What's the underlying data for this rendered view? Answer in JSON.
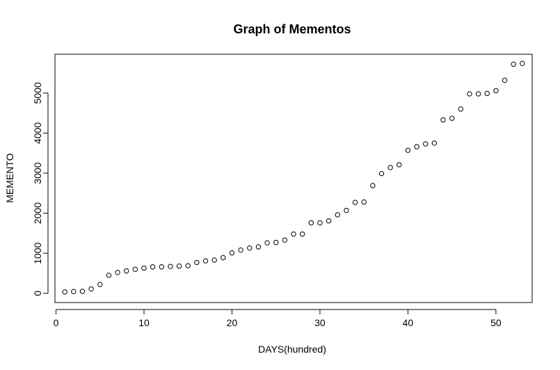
{
  "chart_data": {
    "type": "scatter",
    "title": "Graph of Mementos",
    "xlabel": "DAYS(hundred)",
    "ylabel": "MEMENTO",
    "xlim": [
      -0.12,
      54.12
    ],
    "ylim": [
      -230,
      5969
    ],
    "xticks": [
      0,
      10,
      20,
      30,
      40,
      50
    ],
    "yticks": [
      0,
      1000,
      2000,
      3000,
      4000,
      5000
    ],
    "grid": false,
    "marker": "open-circle",
    "points": [
      {
        "x": 1,
        "y": 35
      },
      {
        "x": 2,
        "y": 45
      },
      {
        "x": 3,
        "y": 50
      },
      {
        "x": 4,
        "y": 110
      },
      {
        "x": 5,
        "y": 220
      },
      {
        "x": 6,
        "y": 450
      },
      {
        "x": 7,
        "y": 520
      },
      {
        "x": 8,
        "y": 560
      },
      {
        "x": 9,
        "y": 600
      },
      {
        "x": 10,
        "y": 630
      },
      {
        "x": 11,
        "y": 660
      },
      {
        "x": 12,
        "y": 660
      },
      {
        "x": 13,
        "y": 670
      },
      {
        "x": 14,
        "y": 680
      },
      {
        "x": 15,
        "y": 690
      },
      {
        "x": 16,
        "y": 770
      },
      {
        "x": 17,
        "y": 810
      },
      {
        "x": 18,
        "y": 830
      },
      {
        "x": 19,
        "y": 890
      },
      {
        "x": 20,
        "y": 1010
      },
      {
        "x": 21,
        "y": 1080
      },
      {
        "x": 22,
        "y": 1130
      },
      {
        "x": 23,
        "y": 1160
      },
      {
        "x": 24,
        "y": 1260
      },
      {
        "x": 25,
        "y": 1270
      },
      {
        "x": 26,
        "y": 1330
      },
      {
        "x": 27,
        "y": 1480
      },
      {
        "x": 28,
        "y": 1480
      },
      {
        "x": 29,
        "y": 1760
      },
      {
        "x": 30,
        "y": 1760
      },
      {
        "x": 31,
        "y": 1810
      },
      {
        "x": 32,
        "y": 1960
      },
      {
        "x": 33,
        "y": 2070
      },
      {
        "x": 34,
        "y": 2270
      },
      {
        "x": 35,
        "y": 2280
      },
      {
        "x": 36,
        "y": 2690
      },
      {
        "x": 37,
        "y": 2990
      },
      {
        "x": 38,
        "y": 3140
      },
      {
        "x": 39,
        "y": 3210
      },
      {
        "x": 40,
        "y": 3570
      },
      {
        "x": 41,
        "y": 3660
      },
      {
        "x": 42,
        "y": 3730
      },
      {
        "x": 43,
        "y": 3750
      },
      {
        "x": 44,
        "y": 4330
      },
      {
        "x": 45,
        "y": 4370
      },
      {
        "x": 46,
        "y": 4600
      },
      {
        "x": 47,
        "y": 4980
      },
      {
        "x": 48,
        "y": 4980
      },
      {
        "x": 49,
        "y": 4990
      },
      {
        "x": 50,
        "y": 5060
      },
      {
        "x": 51,
        "y": 5320
      },
      {
        "x": 52,
        "y": 5720
      },
      {
        "x": 53,
        "y": 5740
      }
    ]
  }
}
